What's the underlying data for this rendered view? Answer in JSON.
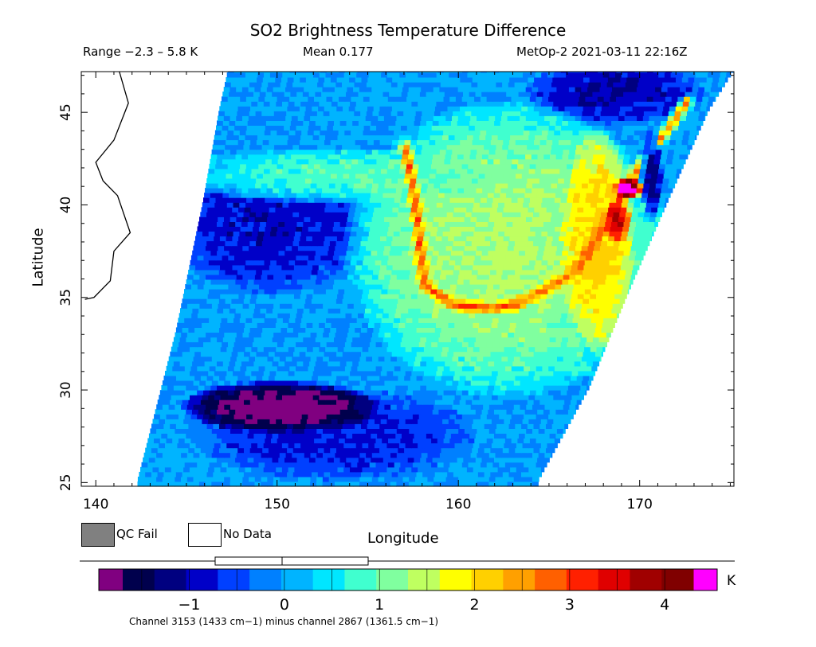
{
  "header": {
    "title": "SO2 Brightness Temperature Difference",
    "range_text": "Range −2.3 – 5.8 K",
    "mean_text": "Mean 0.177",
    "satellite_text": "MetOp-2 2021-03-11 22:16Z"
  },
  "chart_data": {
    "type": "heatmap",
    "title": "SO2 Brightness Temperature Difference",
    "xlabel": "Longitude",
    "ylabel": "Latitude",
    "xlim": [
      139.2,
      175.2
    ],
    "ylim": [
      24.8,
      47.2
    ],
    "x_ticks": [
      140,
      150,
      160,
      170
    ],
    "y_ticks": [
      25,
      30,
      35,
      40,
      45
    ],
    "x_tick_labels": [
      "140",
      "150",
      "160",
      "170"
    ],
    "y_tick_labels": [
      "25",
      "30",
      "35",
      "40",
      "45"
    ],
    "range_min": -2.3,
    "range_max": 5.8,
    "mean": 0.177,
    "units": "K",
    "colorbar": {
      "vmin": -1.7,
      "vmax": 4.3,
      "ticks": [
        -1,
        0,
        1,
        2,
        3,
        4
      ],
      "tick_labels": [
        "−1",
        "0",
        "1",
        "2",
        "3",
        "4"
      ],
      "under_color": "#800080",
      "over_color": "#ff00ff",
      "colors": [
        "#00004d",
        "#000080",
        "#0000c8",
        "#0040ff",
        "#0080ff",
        "#00b4ff",
        "#00e6ff",
        "#40ffcf",
        "#80ff9f",
        "#bfff60",
        "#ffff00",
        "#ffd000",
        "#ffa000",
        "#ff6000",
        "#ff2000",
        "#e00000",
        "#a00000",
        "#800000"
      ]
    },
    "swath": {
      "left_edge": [
        [
          142.3,
          25.0
        ],
        [
          144.4,
          33.0
        ],
        [
          145.9,
          40.0
        ],
        [
          146.8,
          45.0
        ],
        [
          147.3,
          47.2
        ]
      ],
      "right_edge": [
        [
          164.4,
          25.0
        ],
        [
          167.2,
          30.0
        ],
        [
          169.3,
          35.0
        ],
        [
          171.5,
          40.0
        ],
        [
          173.8,
          45.0
        ],
        [
          175.2,
          47.2
        ]
      ]
    },
    "features": [
      {
        "name": "background",
        "value": 0.0
      },
      {
        "name": "low-center-west",
        "center": [
          149.5,
          39.0
        ],
        "radius": [
          6.0,
          4.0
        ],
        "value": -0.9
      },
      {
        "name": "low-south",
        "center": [
          153.0,
          27.5
        ],
        "radius": [
          8.0,
          2.5
        ],
        "value": -0.8
      },
      {
        "name": "low-northeast",
        "center": [
          168.5,
          46.0
        ],
        "radius": [
          5.0,
          1.8
        ],
        "value": -1.0
      },
      {
        "name": "plume-main",
        "center": [
          162.5,
          37.5
        ],
        "radius": [
          9.0,
          8.0
        ],
        "value": 1.4
      },
      {
        "name": "plume-east-band",
        "center": [
          167.5,
          38.0
        ],
        "radius": [
          2.0,
          6.0
        ],
        "value": 2.1
      },
      {
        "name": "arc-north",
        "center": [
          153.0,
          41.5
        ],
        "radius": [
          9.0,
          1.5
        ],
        "value": 0.9
      },
      {
        "name": "ridge-hook-stem",
        "points": [
          [
            156.9,
            43.0
          ],
          [
            157.3,
            41.0
          ],
          [
            157.6,
            39.0
          ],
          [
            157.7,
            37.5
          ],
          [
            158.0,
            35.5
          ],
          [
            159.5,
            34.5
          ],
          [
            161.5,
            34.3
          ],
          [
            163.0,
            34.5
          ]
        ],
        "value": 3.0
      },
      {
        "name": "ridge-east-strip",
        "points": [
          [
            163.0,
            34.5
          ],
          [
            165.0,
            35.5
          ],
          [
            166.5,
            36.5
          ],
          [
            168.0,
            39.0
          ],
          [
            169.5,
            41.5
          ],
          [
            171.0,
            43.5
          ],
          [
            172.5,
            45.5
          ]
        ],
        "value": 2.8
      },
      {
        "name": "so2-peak",
        "center": [
          169.2,
          40.8
        ],
        "radius": [
          0.8,
          0.6
        ],
        "value": 4.6
      },
      {
        "name": "so2-secondary",
        "center": [
          168.6,
          39.0
        ],
        "radius": [
          0.7,
          1.2
        ],
        "value": 3.6
      },
      {
        "name": "edge-low-east",
        "center": [
          170.5,
          41.5
        ],
        "radius": [
          0.6,
          2.5
        ],
        "value": -1.2
      },
      {
        "name": "qc-under-region",
        "center": [
          150.0,
          29.0
        ],
        "radius": [
          5.5,
          1.4
        ],
        "value": -2.0
      }
    ]
  },
  "legend": {
    "qc_fail_label": "QC Fail",
    "no_data_label": "No Data",
    "qc_fail_color": "#808080",
    "no_data_color": "#ffffff"
  },
  "colorbar_unit": "K",
  "footnote": "Channel 3153 (1433 cm−1) minus channel 2867 (1361.5 cm−1)"
}
